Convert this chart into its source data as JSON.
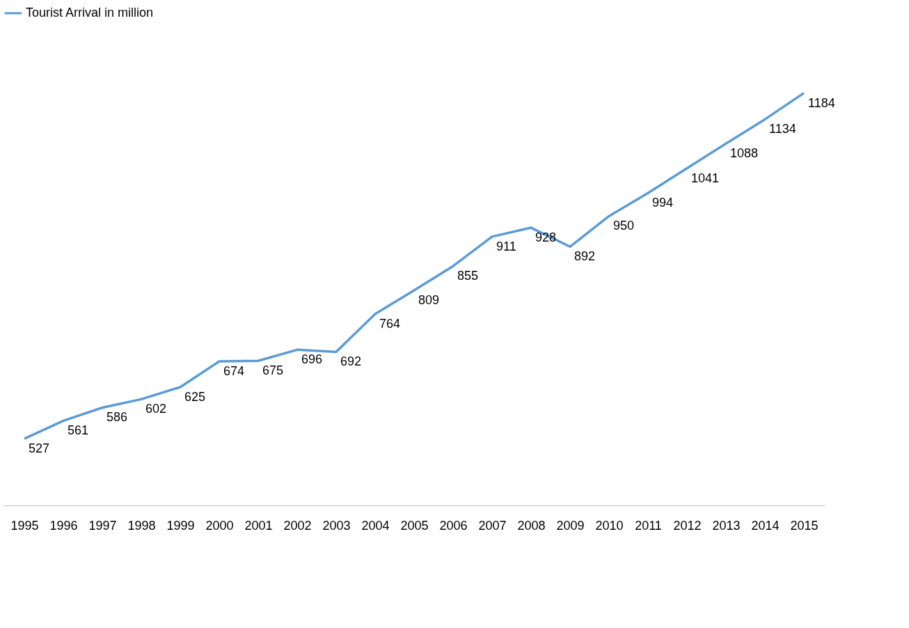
{
  "chart_data": {
    "type": "line",
    "categories": [
      "1995",
      "1996",
      "1997",
      "1998",
      "1999",
      "2000",
      "2001",
      "2002",
      "2003",
      "2004",
      "2005",
      "2006",
      "2007",
      "2008",
      "2009",
      "2010",
      "2011",
      "2012",
      "2013",
      "2014",
      "2015"
    ],
    "series": [
      {
        "name": "Tourist Arrival in million",
        "color": "#5b9bd5",
        "values": [
          527,
          561,
          586,
          602,
          625,
          674,
          675,
          696,
          692,
          764,
          809,
          855,
          911,
          928,
          892,
          950,
          994,
          1041,
          1088,
          1134,
          1184
        ]
      }
    ],
    "data_labels": true,
    "legend": "top",
    "marker": "none",
    "line_style": "solid"
  }
}
